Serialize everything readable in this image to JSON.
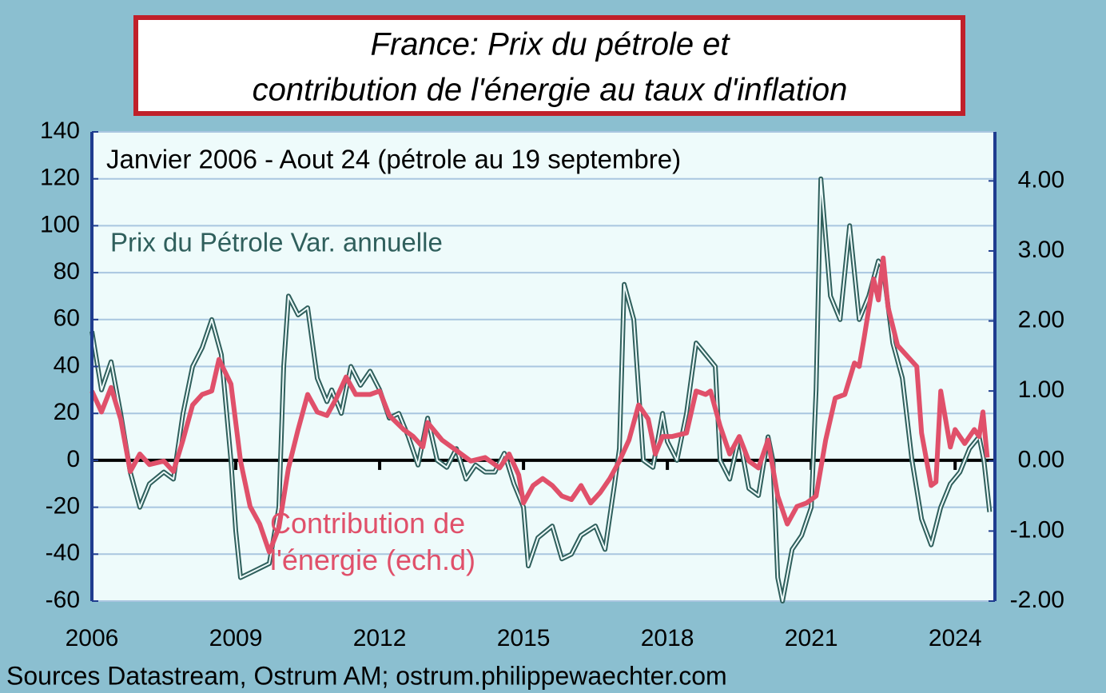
{
  "chart_data": {
    "type": "line",
    "title": [
      "France: Prix du pétrole et",
      "contribution de l'énergie au taux d'inflation"
    ],
    "subtitle": "Janvier 2006 - Aout 24 (pétrole au 19 septembre)",
    "source": "Sources Datastream, Ostrum AM; ostrum.philippewaechter.com",
    "xlim": [
      2006,
      2024.83
    ],
    "xticks": [
      2006,
      2009,
      2012,
      2015,
      2018,
      2021,
      2024
    ],
    "ylim": [
      -60,
      140
    ],
    "yticks": [
      -60,
      -40,
      -20,
      0,
      20,
      40,
      60,
      80,
      100,
      120,
      140
    ],
    "y2lim": [
      -2,
      4.7
    ],
    "y2ticks": [
      {
        "value": -2,
        "label": "-2.00"
      },
      {
        "value": -1,
        "label": "-1.00"
      },
      {
        "value": 0,
        "label": "0.00"
      },
      {
        "value": 1,
        "label": "1.00"
      },
      {
        "value": 2,
        "label": "2.00"
      },
      {
        "value": 3,
        "label": "3.00"
      },
      {
        "value": 4,
        "label": "4.00"
      }
    ],
    "grid": true,
    "series": [
      {
        "name": "Prix du Pétrole Var. annuelle",
        "color": "#2f5f5c",
        "axis": "y",
        "x": [
          2006.0,
          2006.2,
          2006.4,
          2006.6,
          2006.8,
          2007.0,
          2007.2,
          2007.5,
          2007.7,
          2007.9,
          2008.1,
          2008.3,
          2008.5,
          2008.7,
          2008.9,
          2009.0,
          2009.1,
          2009.3,
          2009.5,
          2009.7,
          2009.9,
          2010.0,
          2010.1,
          2010.3,
          2010.5,
          2010.7,
          2010.9,
          2011.0,
          2011.2,
          2011.4,
          2011.6,
          2011.8,
          2012.0,
          2012.2,
          2012.4,
          2012.6,
          2012.8,
          2013.0,
          2013.2,
          2013.4,
          2013.6,
          2013.8,
          2014.0,
          2014.2,
          2014.4,
          2014.6,
          2014.8,
          2015.0,
          2015.1,
          2015.3,
          2015.6,
          2015.8,
          2016.0,
          2016.2,
          2016.5,
          2016.7,
          2016.9,
          2017.0,
          2017.1,
          2017.3,
          2017.5,
          2017.7,
          2017.9,
          2018.0,
          2018.2,
          2018.4,
          2018.6,
          2018.8,
          2019.0,
          2019.1,
          2019.3,
          2019.5,
          2019.7,
          2019.9,
          2020.1,
          2020.2,
          2020.3,
          2020.4,
          2020.6,
          2020.8,
          2021.0,
          2021.1,
          2021.2,
          2021.4,
          2021.6,
          2021.8,
          2022.0,
          2022.2,
          2022.4,
          2022.5,
          2022.7,
          2022.9,
          2023.1,
          2023.3,
          2023.5,
          2023.7,
          2023.9,
          2024.1,
          2024.3,
          2024.5,
          2024.6,
          2024.72
        ],
        "values": [
          55,
          30,
          42,
          20,
          -5,
          -20,
          -10,
          -5,
          -8,
          20,
          40,
          48,
          60,
          45,
          0,
          -30,
          -50,
          -48,
          -46,
          -44,
          -20,
          40,
          70,
          62,
          65,
          35,
          25,
          30,
          20,
          40,
          32,
          38,
          30,
          18,
          20,
          10,
          -2,
          18,
          0,
          -3,
          5,
          -8,
          -2,
          -5,
          -5,
          3,
          -10,
          -20,
          -45,
          -33,
          -28,
          -42,
          -40,
          -32,
          -28,
          -38,
          -10,
          5,
          75,
          60,
          0,
          -3,
          20,
          8,
          0,
          20,
          50,
          45,
          40,
          0,
          -8,
          10,
          -12,
          -15,
          10,
          0,
          -50,
          -60,
          -38,
          -32,
          -20,
          30,
          120,
          70,
          60,
          100,
          60,
          70,
          85,
          82,
          50,
          35,
          0,
          -25,
          -36,
          -20,
          -10,
          -5,
          5,
          10,
          0,
          -22
        ]
      },
      {
        "name": "Contribution de l'énergie (ech.d)",
        "color": "#e0506a",
        "axis": "y2",
        "x": [
          2006.0,
          2006.2,
          2006.4,
          2006.6,
          2006.8,
          2007.0,
          2007.2,
          2007.5,
          2007.7,
          2007.9,
          2008.1,
          2008.3,
          2008.5,
          2008.65,
          2008.9,
          2009.1,
          2009.3,
          2009.5,
          2009.7,
          2009.9,
          2010.1,
          2010.3,
          2010.5,
          2010.7,
          2010.9,
          2011.1,
          2011.3,
          2011.5,
          2011.8,
          2012.0,
          2012.2,
          2012.5,
          2012.7,
          2012.9,
          2013.0,
          2013.3,
          2013.6,
          2013.9,
          2014.2,
          2014.5,
          2014.7,
          2014.9,
          2015.0,
          2015.2,
          2015.4,
          2015.6,
          2015.8,
          2016.0,
          2016.2,
          2016.4,
          2016.6,
          2016.8,
          2017.0,
          2017.2,
          2017.4,
          2017.6,
          2017.75,
          2017.9,
          2018.1,
          2018.4,
          2018.6,
          2018.8,
          2018.9,
          2019.1,
          2019.3,
          2019.5,
          2019.7,
          2019.9,
          2020.1,
          2020.3,
          2020.5,
          2020.7,
          2020.9,
          2021.1,
          2021.3,
          2021.5,
          2021.7,
          2021.9,
          2022.0,
          2022.1,
          2022.3,
          2022.4,
          2022.5,
          2022.6,
          2022.8,
          2023.0,
          2023.2,
          2023.3,
          2023.5,
          2023.6,
          2023.7,
          2023.9,
          2024.0,
          2024.2,
          2024.4,
          2024.5,
          2024.58,
          2024.67
        ],
        "values": [
          1.0,
          0.7,
          1.05,
          0.6,
          -0.15,
          0.1,
          -0.05,
          0.0,
          -0.15,
          0.3,
          0.8,
          0.95,
          1.0,
          1.45,
          1.1,
          0.0,
          -0.65,
          -0.9,
          -1.3,
          -0.95,
          -0.1,
          0.45,
          0.95,
          0.7,
          0.65,
          0.9,
          1.2,
          0.95,
          0.95,
          1.0,
          0.65,
          0.45,
          0.35,
          0.2,
          0.55,
          0.3,
          0.15,
          0.0,
          0.05,
          -0.1,
          0.1,
          -0.2,
          -0.6,
          -0.35,
          -0.25,
          -0.35,
          -0.5,
          -0.55,
          -0.35,
          -0.6,
          -0.45,
          -0.25,
          0.0,
          0.3,
          0.8,
          0.6,
          0.1,
          0.35,
          0.35,
          0.4,
          1.0,
          0.95,
          1.0,
          0.5,
          0.1,
          0.35,
          0.0,
          -0.1,
          0.3,
          -0.5,
          -0.9,
          -0.65,
          -0.6,
          -0.5,
          0.3,
          0.9,
          0.95,
          1.4,
          1.35,
          1.75,
          2.6,
          2.3,
          2.9,
          2.2,
          1.65,
          1.5,
          1.35,
          0.4,
          -0.35,
          -0.3,
          1.0,
          0.2,
          0.45,
          0.25,
          0.45,
          0.35,
          0.7,
          0.05
        ]
      }
    ]
  }
}
